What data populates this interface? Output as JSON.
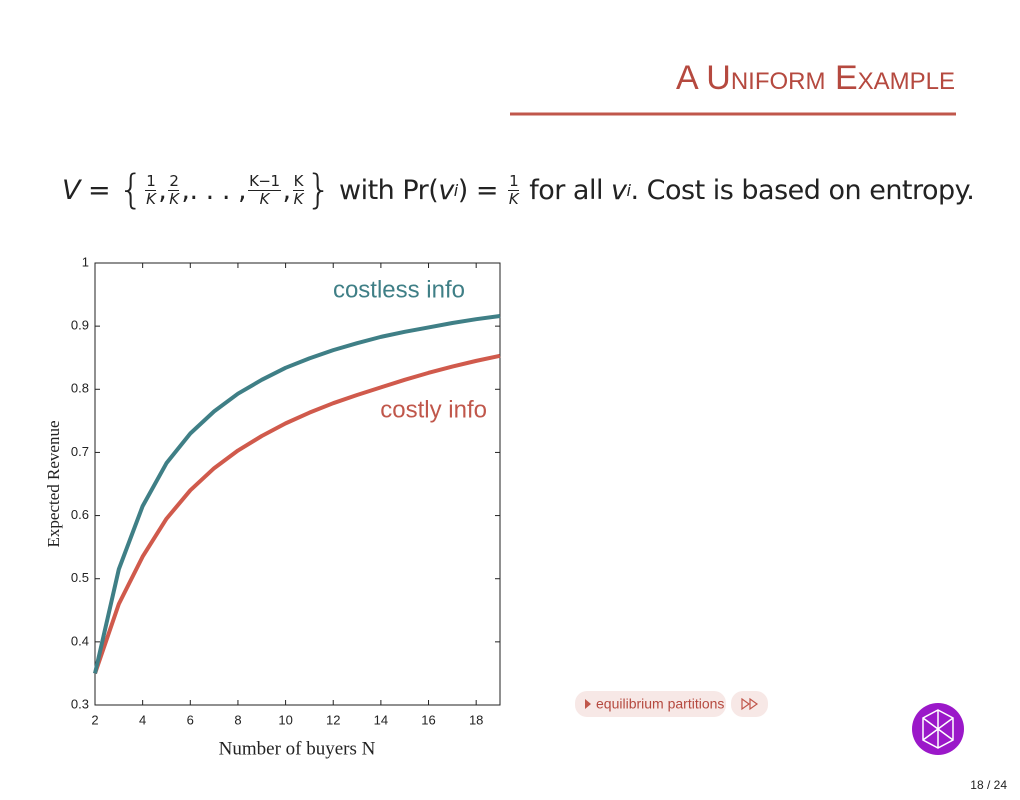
{
  "slide": {
    "title": "A Uniform Example",
    "formula": {
      "lhs": "V = ",
      "open": "{",
      "fractions_start": [
        {
          "num": "1",
          "den": "K"
        },
        {
          "num": "2",
          "den": "K"
        }
      ],
      "sep": ",",
      "ellipsis": ". . . ,",
      "fractions_end": [
        {
          "num": "K−1",
          "den": "K"
        },
        {
          "num": "K",
          "den": "K"
        }
      ],
      "close": "}",
      "with": " with Pr(",
      "var": "v",
      "sub": "i",
      "eq": ") = ",
      "prob": {
        "num": "1",
        "den": "K"
      },
      "for_all": " for all ",
      "sub2": "i",
      "tail": ". Cost is based on entropy."
    },
    "button": "equilibrium partitions",
    "page": "18 / 24"
  },
  "chart_data": {
    "type": "line",
    "x": [
      2,
      3,
      4,
      5,
      6,
      7,
      8,
      9,
      10,
      11,
      12,
      13,
      14,
      15,
      16,
      17,
      18,
      19
    ],
    "series": [
      {
        "name": "costless info",
        "color": "#3f7f86",
        "values": [
          0.35,
          0.515,
          0.615,
          0.683,
          0.73,
          0.765,
          0.793,
          0.815,
          0.834,
          0.849,
          0.862,
          0.873,
          0.883,
          0.891,
          0.898,
          0.905,
          0.911,
          0.916
        ]
      },
      {
        "name": "costly info",
        "color": "#d05a4c",
        "values": [
          0.35,
          0.46,
          0.535,
          0.595,
          0.64,
          0.675,
          0.703,
          0.726,
          0.746,
          0.763,
          0.778,
          0.791,
          0.803,
          0.815,
          0.826,
          0.836,
          0.845,
          0.853
        ]
      }
    ],
    "xlim": [
      2,
      19
    ],
    "xticks": [
      2,
      4,
      6,
      8,
      10,
      12,
      14,
      16,
      18
    ],
    "ylim": [
      0.3,
      1
    ],
    "yticks": [
      0.3,
      0.4,
      0.5,
      0.6,
      0.7,
      0.8,
      0.9,
      1
    ],
    "xlabel": "Number of buyers N",
    "ylabel": "Expected Revenue"
  }
}
